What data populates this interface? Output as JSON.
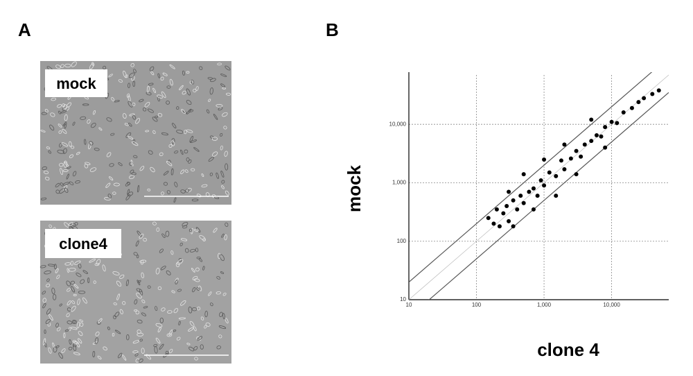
{
  "panel_a": {
    "label": "A",
    "images": [
      {
        "label": "mock"
      },
      {
        "label": "clone4"
      }
    ]
  },
  "chart_data": {
    "type": "scatter",
    "panel_label": "B",
    "x_label": "clone 4",
    "y_label": "mock",
    "log_x": true,
    "log_y": true,
    "grid": true,
    "color": "#000000",
    "xlim": [
      10,
      70000
    ],
    "ylim": [
      10,
      70000
    ],
    "xticks": [
      10,
      100,
      {
        "value": 1000,
        "label": "1,000"
      },
      {
        "value": 10000,
        "label": "10,000"
      }
    ],
    "yticks": [
      10,
      100,
      {
        "value": 1000,
        "label": "1,000"
      },
      {
        "value": 10000,
        "label": "10,000"
      }
    ],
    "fold_lines": [
      0.5,
      1,
      2
    ],
    "x": [
      150,
      180,
      200,
      220,
      250,
      280,
      300,
      350,
      400,
      450,
      500,
      600,
      700,
      800,
      900,
      1000,
      1200,
      1500,
      1800,
      2000,
      2500,
      3000,
      3500,
      4000,
      5000,
      6000,
      7000,
      8000,
      10000,
      12000,
      15000,
      20000,
      25000,
      30000,
      40000,
      50000,
      300,
      350,
      500,
      700,
      1000,
      1500,
      2000,
      3000,
      5000,
      8000
    ],
    "y": [
      250,
      200,
      350,
      180,
      300,
      400,
      220,
      500,
      350,
      600,
      450,
      700,
      800,
      600,
      1100,
      900,
      1500,
      1300,
      2400,
      1700,
      2600,
      3500,
      2800,
      4500,
      5200,
      6500,
      6200,
      9000,
      11000,
      10500,
      16000,
      19000,
      24000,
      28000,
      33000,
      38000,
      700,
      180,
      1400,
      350,
      2500,
      600,
      4500,
      1400,
      12000,
      4000
    ]
  }
}
